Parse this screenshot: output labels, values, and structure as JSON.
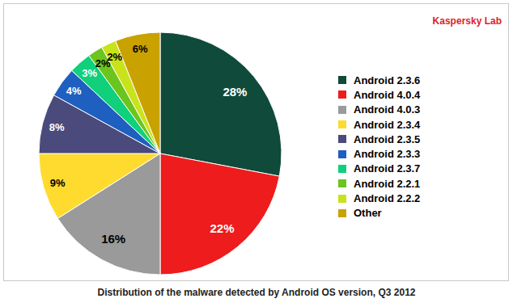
{
  "chart_data": {
    "type": "pie",
    "title": "Distribution of the malware detected by Android OS version, Q3 2012",
    "subtitle": "Kaspersky Lab",
    "categories": [
      "Android 2.3.6",
      "Android 4.0.4",
      "Android 4.0.3",
      "Android 2.3.4",
      "Android 2.3.5",
      "Android 2.3.3",
      "Android 2.3.7",
      "Android 2.2.1",
      "Android 2.2.2",
      "Other"
    ],
    "values": [
      28,
      22,
      16,
      9,
      8,
      4,
      3,
      2,
      2,
      6
    ],
    "value_labels": [
      "28%",
      "22%",
      "16%",
      "9%",
      "8%",
      "4%",
      "3%",
      "2%",
      "2%",
      "6%"
    ],
    "colors": [
      "#0f4a3a",
      "#ee1c1c",
      "#9a9a9a",
      "#fedb2e",
      "#4b4a7c",
      "#1e5fc0",
      "#10d07c",
      "#6cc41e",
      "#c9e31a",
      "#c9a200"
    ],
    "data_labels": true,
    "legend": "right"
  }
}
